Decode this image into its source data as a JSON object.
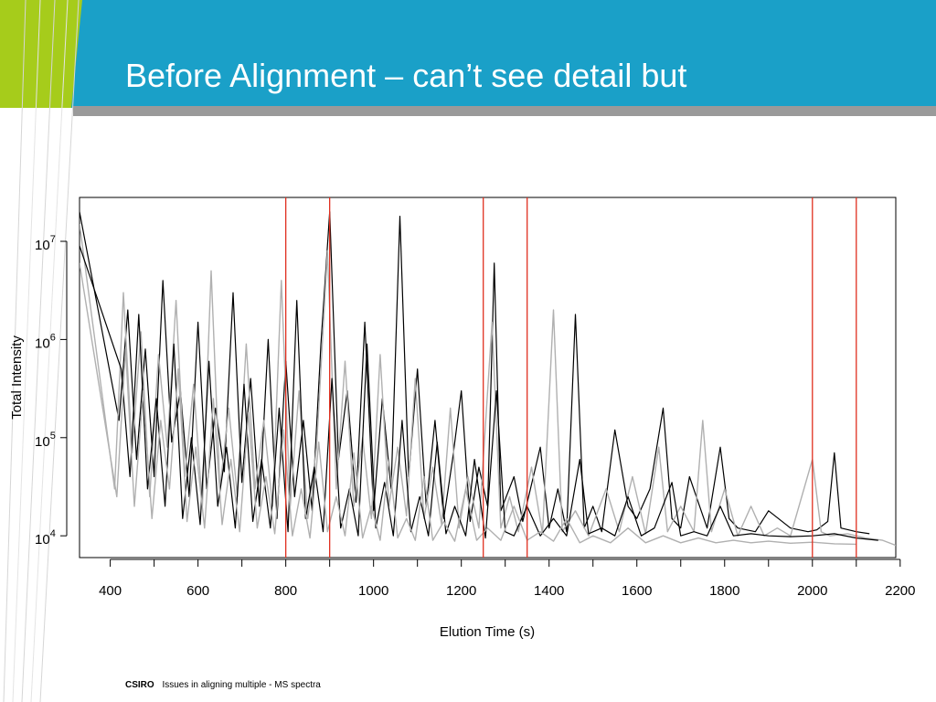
{
  "slide": {
    "title": "Before Alignment – can’t see detail but",
    "footer_brand": "CSIRO",
    "footer_text": "Issues in aligning multiple - MS spectra",
    "colors": {
      "header_blue": "#1aa0c8",
      "accent_green": "#a6cc1b",
      "grey_band": "#9a9a9a",
      "marker_red": "#e03020",
      "trace_black": "#000000",
      "trace_grey": "#b0b0b0"
    }
  },
  "chart_data": {
    "type": "line",
    "xlabel": "Elution Time (s)",
    "ylabel": "Total Intensity",
    "xlim": [
      330,
      2190
    ],
    "ylim": [
      6000,
      28000000
    ],
    "y_scale": "log",
    "x_ticks": [
      400,
      500,
      600,
      700,
      800,
      900,
      1000,
      1100,
      1200,
      1300,
      1400,
      1500,
      1600,
      1700,
      1800,
      1900,
      2000,
      2100,
      2200
    ],
    "x_tick_labels": [
      {
        "value": 400,
        "label": "400"
      },
      {
        "value": 600,
        "label": "600"
      },
      {
        "value": 800,
        "label": "800"
      },
      {
        "value": 1000,
        "label": "1000"
      },
      {
        "value": 1200,
        "label": "1200"
      },
      {
        "value": 1400,
        "label": "1400"
      },
      {
        "value": 1600,
        "label": "1600"
      },
      {
        "value": 1800,
        "label": "1800"
      },
      {
        "value": 2000,
        "label": "2000"
      },
      {
        "value": 2200,
        "label": "2200"
      }
    ],
    "y_ticks": [
      {
        "value": 10000,
        "base": "10",
        "exp": "4"
      },
      {
        "value": 100000,
        "base": "10",
        "exp": "5"
      },
      {
        "value": 1000000,
        "base": "10",
        "exp": "6"
      },
      {
        "value": 10000000,
        "base": "10",
        "exp": "7"
      }
    ],
    "vertical_markers": [
      800,
      900,
      1250,
      1350,
      2000,
      2100
    ],
    "grid": false,
    "legend": "none",
    "series": [
      {
        "color": "black",
        "points": [
          [
            330,
            20000000
          ],
          [
            420,
            150000
          ],
          [
            440,
            2000000
          ],
          [
            460,
            60000
          ],
          [
            480,
            800000
          ],
          [
            500,
            40000
          ],
          [
            520,
            4000000
          ],
          [
            540,
            90000
          ],
          [
            560,
            300000
          ],
          [
            580,
            25000
          ],
          [
            600,
            1500000
          ],
          [
            620,
            30000
          ],
          [
            640,
            200000
          ],
          [
            660,
            45000
          ],
          [
            680,
            3000000
          ],
          [
            700,
            35000
          ],
          [
            720,
            400000
          ],
          [
            740,
            20000
          ],
          [
            760,
            1000000
          ],
          [
            780,
            15000
          ],
          [
            800,
            600000
          ],
          [
            820,
            25000
          ],
          [
            840,
            150000
          ],
          [
            860,
            18000
          ],
          [
            880,
            900000
          ],
          [
            900,
            20000000
          ],
          [
            920,
            60000
          ],
          [
            940,
            300000
          ],
          [
            960,
            22000
          ],
          [
            980,
            1500000
          ],
          [
            1000,
            18000
          ],
          [
            1020,
            250000
          ],
          [
            1040,
            30000
          ],
          [
            1060,
            18000000
          ],
          [
            1080,
            40000
          ],
          [
            1100,
            500000
          ],
          [
            1120,
            20000
          ],
          [
            1140,
            150000
          ],
          [
            1160,
            15000
          ],
          [
            1180,
            60000
          ],
          [
            1200,
            300000
          ],
          [
            1220,
            14000
          ],
          [
            1240,
            50000
          ],
          [
            1260,
            20000
          ],
          [
            1275,
            6000000
          ],
          [
            1290,
            18000
          ],
          [
            1320,
            40000
          ],
          [
            1340,
            14000
          ],
          [
            1380,
            80000
          ],
          [
            1400,
            12000
          ],
          [
            1420,
            30000
          ],
          [
            1440,
            11000
          ],
          [
            1460,
            1800000
          ],
          [
            1480,
            12000
          ],
          [
            1500,
            20000
          ],
          [
            1520,
            11000
          ],
          [
            1550,
            120000
          ],
          [
            1580,
            20000
          ],
          [
            1600,
            15000
          ],
          [
            1630,
            30000
          ],
          [
            1660,
            200000
          ],
          [
            1680,
            15000
          ],
          [
            1700,
            12000
          ],
          [
            1720,
            40000
          ],
          [
            1760,
            12000
          ],
          [
            1790,
            80000
          ],
          [
            1810,
            15000
          ],
          [
            1830,
            12000
          ],
          [
            1870,
            11000
          ],
          [
            1900,
            18000
          ],
          [
            1950,
            12000
          ],
          [
            1990,
            11000
          ],
          [
            2010,
            11500
          ],
          [
            2035,
            14000
          ],
          [
            2050,
            70000
          ],
          [
            2065,
            12000
          ],
          [
            2100,
            11000
          ],
          [
            2130,
            10500
          ]
        ]
      },
      {
        "color": "grey",
        "points": [
          [
            330,
            15000000
          ],
          [
            410,
            30000
          ],
          [
            430,
            3000000
          ],
          [
            450,
            70000
          ],
          [
            470,
            1200000
          ],
          [
            490,
            25000
          ],
          [
            510,
            700000
          ],
          [
            530,
            80000
          ],
          [
            550,
            2500000
          ],
          [
            570,
            40000
          ],
          [
            590,
            350000
          ],
          [
            610,
            20000
          ],
          [
            630,
            5000000
          ],
          [
            650,
            30000
          ],
          [
            670,
            200000
          ],
          [
            690,
            25000
          ],
          [
            710,
            900000
          ],
          [
            730,
            30000
          ],
          [
            750,
            150000
          ],
          [
            770,
            20000
          ],
          [
            790,
            4000000
          ],
          [
            810,
            20000
          ],
          [
            830,
            300000
          ],
          [
            850,
            15000
          ],
          [
            870,
            80000
          ],
          [
            895,
            8000000
          ],
          [
            915,
            30000
          ],
          [
            935,
            600000
          ],
          [
            955,
            20000
          ],
          [
            975,
            100000
          ],
          [
            995,
            15000
          ],
          [
            1015,
            700000
          ],
          [
            1035,
            20000
          ],
          [
            1055,
            80000
          ],
          [
            1075,
            16000
          ],
          [
            1095,
            400000
          ],
          [
            1115,
            15000
          ],
          [
            1135,
            50000
          ],
          [
            1155,
            13000
          ],
          [
            1175,
            200000
          ],
          [
            1195,
            12000
          ],
          [
            1215,
            40000
          ],
          [
            1240,
            12000
          ],
          [
            1270,
            1500000
          ],
          [
            1290,
            12000
          ],
          [
            1310,
            25000
          ],
          [
            1330,
            11000
          ],
          [
            1360,
            50000
          ],
          [
            1385,
            10500
          ],
          [
            1410,
            2000000
          ],
          [
            1430,
            11000
          ],
          [
            1460,
            18000
          ],
          [
            1490,
            10000
          ],
          [
            1530,
            30000
          ],
          [
            1560,
            11000
          ],
          [
            1590,
            40000
          ],
          [
            1620,
            10500
          ],
          [
            1650,
            80000
          ],
          [
            1670,
            11000
          ],
          [
            1700,
            20000
          ],
          [
            1730,
            11000
          ],
          [
            1750,
            150000
          ],
          [
            1770,
            11000
          ],
          [
            1800,
            30000
          ],
          [
            1830,
            10000
          ],
          [
            1860,
            20000
          ],
          [
            1890,
            10000
          ],
          [
            1920,
            12000
          ],
          [
            1950,
            10000
          ],
          [
            2000,
            60000
          ],
          [
            2020,
            11000
          ],
          [
            2040,
            10000
          ],
          [
            2080,
            10500
          ],
          [
            2120,
            9500
          ],
          [
            2160,
            9000
          ],
          [
            2190,
            8000
          ]
        ]
      },
      {
        "color": "black",
        "points": [
          [
            330,
            9000000
          ],
          [
            425,
            500000
          ],
          [
            445,
            40000
          ],
          [
            465,
            1800000
          ],
          [
            485,
            30000
          ],
          [
            505,
            250000
          ],
          [
            525,
            20000
          ],
          [
            545,
            900000
          ],
          [
            565,
            15000
          ],
          [
            585,
            100000
          ],
          [
            605,
            13000
          ],
          [
            625,
            600000
          ],
          [
            645,
            20000
          ],
          [
            665,
            80000
          ],
          [
            685,
            12000
          ],
          [
            705,
            350000
          ],
          [
            725,
            14000
          ],
          [
            745,
            60000
          ],
          [
            765,
            12000
          ],
          [
            785,
            200000
          ],
          [
            805,
            11000
          ],
          [
            825,
            2500000
          ],
          [
            845,
            15000
          ],
          [
            865,
            50000
          ],
          [
            885,
            11000
          ],
          [
            905,
            400000
          ],
          [
            925,
            12000
          ],
          [
            945,
            30000
          ],
          [
            965,
            10000
          ],
          [
            985,
            900000
          ],
          [
            1005,
            12000
          ],
          [
            1025,
            35000
          ],
          [
            1045,
            10000
          ],
          [
            1065,
            150000
          ],
          [
            1085,
            11000
          ],
          [
            1105,
            25000
          ],
          [
            1125,
            10000
          ],
          [
            1145,
            90000
          ],
          [
            1165,
            10500
          ],
          [
            1185,
            20000
          ],
          [
            1210,
            10000
          ],
          [
            1230,
            60000
          ],
          [
            1255,
            9500
          ],
          [
            1280,
            300000
          ],
          [
            1300,
            11000
          ],
          [
            1320,
            10000
          ],
          [
            1350,
            20000
          ],
          [
            1380,
            10000
          ],
          [
            1410,
            15000
          ],
          [
            1440,
            10000
          ],
          [
            1470,
            60000
          ],
          [
            1490,
            10500
          ],
          [
            1520,
            12000
          ],
          [
            1550,
            10000
          ],
          [
            1580,
            25000
          ],
          [
            1610,
            10000
          ],
          [
            1640,
            12000
          ],
          [
            1680,
            35000
          ],
          [
            1700,
            10000
          ],
          [
            1730,
            11000
          ],
          [
            1760,
            10000
          ],
          [
            1790,
            20000
          ],
          [
            1820,
            10000
          ],
          [
            1860,
            10500
          ],
          [
            1900,
            10000
          ],
          [
            1950,
            9800
          ],
          [
            2000,
            10000
          ],
          [
            2050,
            10500
          ],
          [
            2100,
            9500
          ],
          [
            2150,
            9000
          ]
        ]
      },
      {
        "color": "grey",
        "points": [
          [
            330,
            6000000
          ],
          [
            415,
            25000
          ],
          [
            435,
            800000
          ],
          [
            455,
            20000
          ],
          [
            475,
            300000
          ],
          [
            495,
            15000
          ],
          [
            515,
            150000
          ],
          [
            535,
            30000
          ],
          [
            555,
            500000
          ],
          [
            575,
            14000
          ],
          [
            595,
            80000
          ],
          [
            615,
            12000
          ],
          [
            635,
            250000
          ],
          [
            655,
            13000
          ],
          [
            675,
            60000
          ],
          [
            695,
            11000
          ],
          [
            715,
            180000
          ],
          [
            735,
            12000
          ],
          [
            755,
            40000
          ],
          [
            775,
            10500
          ],
          [
            795,
            120000
          ],
          [
            815,
            10000
          ],
          [
            835,
            30000
          ],
          [
            855,
            9500
          ],
          [
            875,
            90000
          ],
          [
            895,
            11000
          ],
          [
            915,
            25000
          ],
          [
            935,
            10000
          ],
          [
            955,
            70000
          ],
          [
            975,
            9500
          ],
          [
            995,
            20000
          ],
          [
            1015,
            9000
          ],
          [
            1035,
            60000
          ],
          [
            1055,
            9500
          ],
          [
            1075,
            15000
          ],
          [
            1095,
            9000
          ],
          [
            1115,
            40000
          ],
          [
            1135,
            9000
          ],
          [
            1160,
            14000
          ],
          [
            1185,
            8800
          ],
          [
            1210,
            30000
          ],
          [
            1235,
            9000
          ],
          [
            1260,
            12000
          ],
          [
            1290,
            9000
          ],
          [
            1320,
            20000
          ],
          [
            1350,
            9000
          ],
          [
            1380,
            11000
          ],
          [
            1410,
            8800
          ],
          [
            1440,
            15000
          ],
          [
            1470,
            8500
          ],
          [
            1500,
            10000
          ],
          [
            1540,
            8500
          ],
          [
            1580,
            12000
          ],
          [
            1620,
            8500
          ],
          [
            1660,
            10000
          ],
          [
            1700,
            8500
          ],
          [
            1740,
            9500
          ],
          [
            1780,
            8500
          ],
          [
            1820,
            9000
          ],
          [
            1860,
            8500
          ],
          [
            1900,
            8800
          ],
          [
            1950,
            8400
          ],
          [
            2000,
            8600
          ],
          [
            2050,
            8300
          ],
          [
            2100,
            8200
          ]
        ]
      }
    ]
  }
}
